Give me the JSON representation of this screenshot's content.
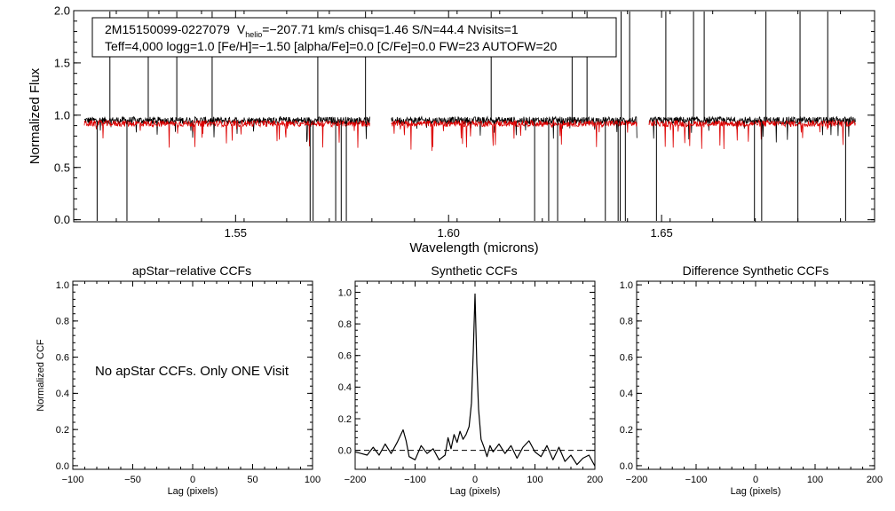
{
  "chart_data": [
    {
      "type": "line",
      "info_box": {
        "line1_star": "2M15150099-0227079",
        "line1_v": "V",
        "line1_sub": "helio",
        "line1_rest": "=−207.71 km/s  chisq=1.46  S/N=44.4  Nvisits=1",
        "line2": "Teff=4,000 logg=1.0 [Fe/H]=−1.50 [alpha/Fe]=0.0 [C/Fe]=0.0 FW=23 AUTOFW=20"
      },
      "xlabel": "Wavelength (microns)",
      "ylabel": "Normalized Flux",
      "xlim": [
        1.512,
        1.7
      ],
      "ylim": [
        -0.02,
        2.0
      ],
      "xticks": [
        {
          "v": 1.55,
          "label": "1.55"
        },
        {
          "v": 1.6,
          "label": "1.60"
        },
        {
          "v": 1.65,
          "label": "1.65"
        }
      ],
      "yticks": [
        {
          "v": 0.0,
          "label": "0.0"
        },
        {
          "v": 0.5,
          "label": "0.5"
        },
        {
          "v": 1.0,
          "label": "1.0"
        },
        {
          "v": 1.5,
          "label": "1.5"
        },
        {
          "v": 2.0,
          "label": "2.0"
        }
      ],
      "chips": [
        [
          1.5145,
          1.5815
        ],
        [
          1.5865,
          1.6442
        ],
        [
          1.647,
          1.6955
        ]
      ],
      "series": [
        {
          "color": "#000000",
          "level": 0.95,
          "noise": 0.035
        },
        {
          "color": "#dd0000",
          "level": 0.92,
          "noise": 0.03
        }
      ],
      "spikes_up": [
        1.5205,
        1.5295,
        1.5362,
        1.5445,
        1.5693,
        1.5805,
        1.61,
        1.629,
        1.6325,
        1.6405,
        1.6425,
        1.651,
        1.6575,
        1.66,
        1.6745,
        1.6825,
        1.689
      ],
      "spikes_down": [
        1.5175,
        1.5245,
        1.5675,
        1.5682,
        1.5735,
        1.5748,
        1.576,
        1.6202,
        1.6235,
        1.6256,
        1.6368,
        1.6398,
        1.6403,
        1.6415,
        1.6488,
        1.6718,
        1.6735,
        1.682,
        1.6932
      ]
    },
    {
      "type": "line",
      "title": "apStar−relative CCFs",
      "xlabel": "Lag (pixels)",
      "ylabel": "Normalized CCF",
      "xlim": [
        -100,
        100
      ],
      "ylim": [
        -0.02,
        1.02
      ],
      "xticks": [
        {
          "v": -100,
          "label": "−100"
        },
        {
          "v": -50,
          "label": "−50"
        },
        {
          "v": 0,
          "label": "0"
        },
        {
          "v": 50,
          "label": "50"
        },
        {
          "v": 100,
          "label": "100"
        }
      ],
      "yticks": [
        {
          "v": 0.0,
          "label": "0.0"
        },
        {
          "v": 0.2,
          "label": "0.2"
        },
        {
          "v": 0.4,
          "label": "0.4"
        },
        {
          "v": 0.6,
          "label": "0.6"
        },
        {
          "v": 0.8,
          "label": "0.8"
        },
        {
          "v": 1.0,
          "label": "1.0"
        }
      ],
      "message": "No apStar CCFs.  Only ONE Visit"
    },
    {
      "type": "line",
      "title": "Synthetic CCFs",
      "xlabel": "Lag (pixels)",
      "xlim": [
        -200,
        200
      ],
      "ylim": [
        -0.12,
        1.07
      ],
      "xticks": [
        {
          "v": -200,
          "label": "−200"
        },
        {
          "v": -100,
          "label": "−100"
        },
        {
          "v": 0,
          "label": "0"
        },
        {
          "v": 100,
          "label": "100"
        },
        {
          "v": 200,
          "label": "200"
        }
      ],
      "yticks": [
        {
          "v": 0.0,
          "label": "0.0"
        },
        {
          "v": 0.2,
          "label": "0.2"
        },
        {
          "v": 0.4,
          "label": "0.4"
        },
        {
          "v": 0.6,
          "label": "0.6"
        },
        {
          "v": 0.8,
          "label": "0.8"
        },
        {
          "v": 1.0,
          "label": "1.0"
        }
      ],
      "zero_line": 0.0,
      "ccf": {
        "x": [
          -200,
          -190,
          -180,
          -170,
          -160,
          -150,
          -140,
          -130,
          -120,
          -115,
          -110,
          -100,
          -90,
          -80,
          -70,
          -60,
          -50,
          -45,
          -40,
          -35,
          -30,
          -25,
          -20,
          -15,
          -10,
          -6,
          -3,
          0,
          3,
          6,
          10,
          15,
          20,
          25,
          30,
          40,
          50,
          60,
          70,
          80,
          90,
          100,
          110,
          120,
          130,
          140,
          150,
          160,
          170,
          180,
          190,
          200
        ],
        "y": [
          -0.01,
          -0.02,
          -0.03,
          0.02,
          -0.03,
          0.04,
          -0.02,
          0.05,
          0.13,
          0.06,
          -0.04,
          -0.06,
          0.03,
          -0.02,
          0.01,
          -0.06,
          -0.03,
          0.08,
          0.01,
          0.1,
          0.05,
          0.12,
          0.07,
          0.1,
          0.15,
          0.3,
          0.62,
          0.99,
          0.55,
          0.26,
          0.07,
          0.02,
          -0.04,
          0.03,
          -0.01,
          0.04,
          -0.02,
          0.03,
          -0.05,
          0.02,
          0.06,
          -0.01,
          -0.04,
          0.03,
          -0.06,
          0.02,
          -0.07,
          -0.03,
          -0.09,
          -0.05,
          -0.03,
          -0.1
        ]
      }
    },
    {
      "type": "line",
      "title": "Difference Synthetic CCFs",
      "xlabel": "Lag (pixels)",
      "xlim": [
        -200,
        200
      ],
      "ylim": [
        -0.02,
        1.02
      ],
      "xticks": [
        {
          "v": -200,
          "label": "−200"
        },
        {
          "v": -100,
          "label": "−100"
        },
        {
          "v": 0,
          "label": "0"
        },
        {
          "v": 100,
          "label": "100"
        },
        {
          "v": 200,
          "label": "200"
        }
      ],
      "yticks": [
        {
          "v": 0.0,
          "label": "0.0"
        },
        {
          "v": 0.2,
          "label": "0.2"
        },
        {
          "v": 0.4,
          "label": "0.4"
        },
        {
          "v": 0.6,
          "label": "0.6"
        },
        {
          "v": 0.8,
          "label": "0.8"
        },
        {
          "v": 1.0,
          "label": "1.0"
        }
      ]
    }
  ]
}
